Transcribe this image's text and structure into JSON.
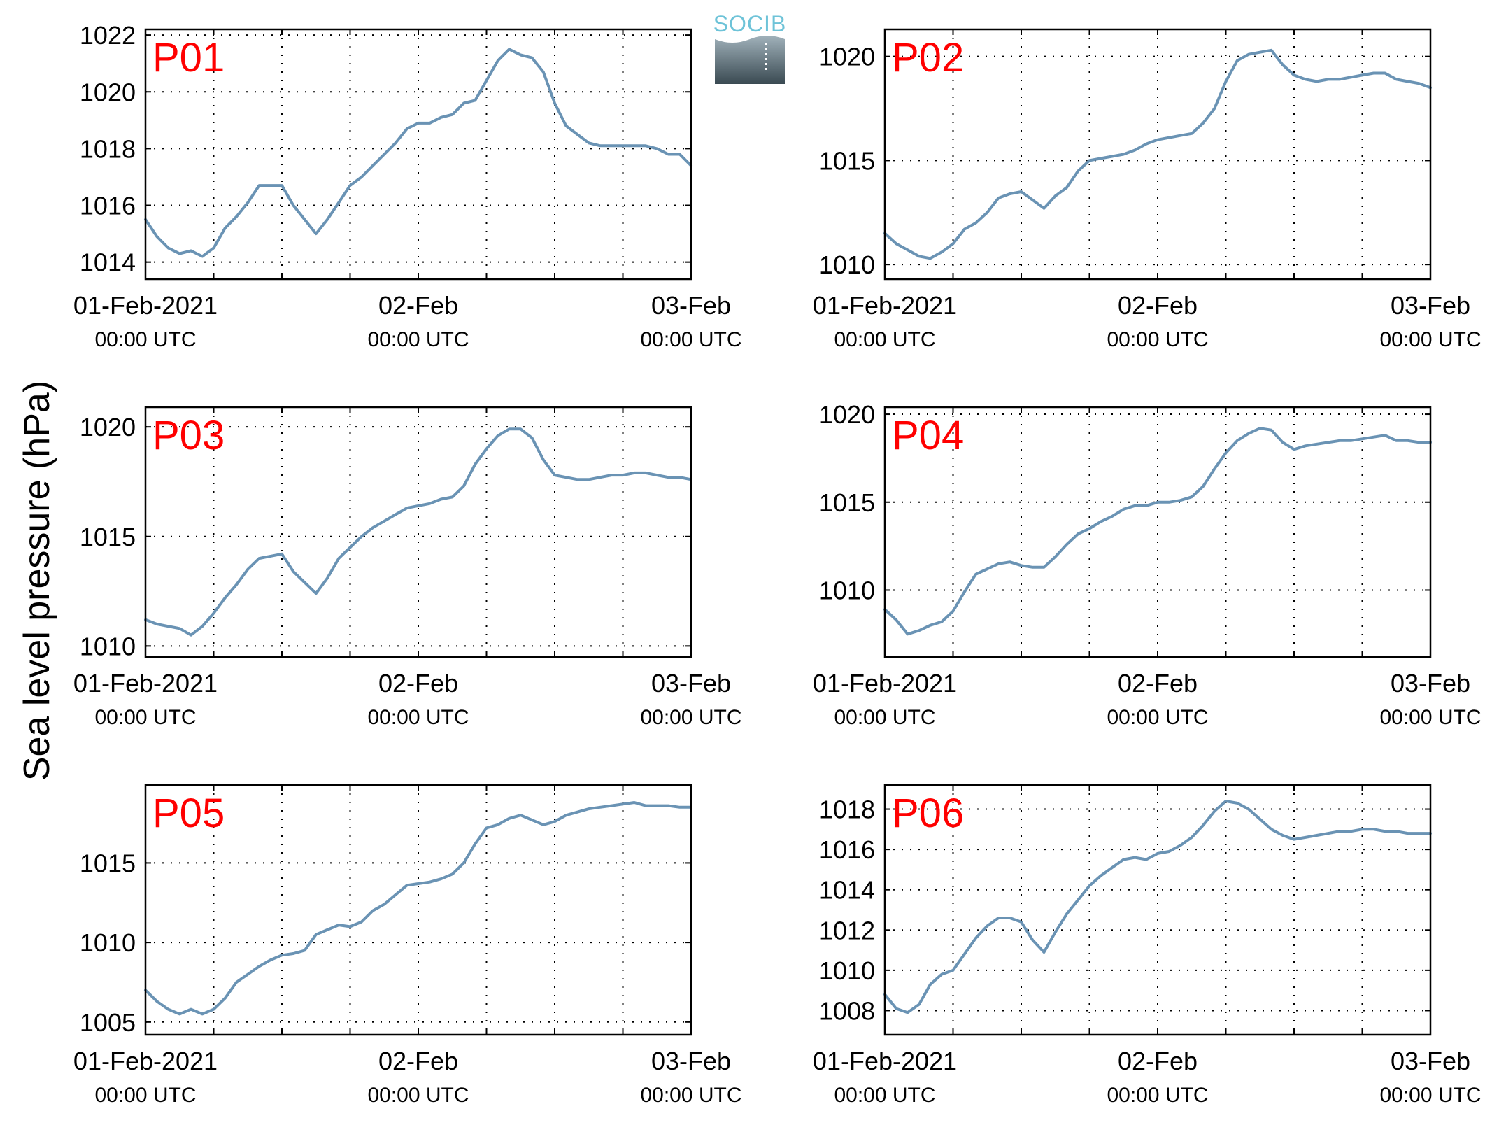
{
  "figure": {
    "ylabel": "Sea level pressure (hPa)",
    "logo_text": "SOCIB"
  },
  "colors": {
    "line": "#6a93b4",
    "panel_label": "#ff0000",
    "axis": "#000000",
    "grid": "#000000"
  },
  "x_axis": {
    "range": [
      "2021-02-01 00:00",
      "2021-02-03 00:00"
    ],
    "ticks": [
      {
        "value": "2021-02-01 00:00",
        "label": "01-Feb-2021",
        "sublabel": "00:00 UTC"
      },
      {
        "value": "2021-02-02 00:00",
        "label": "02-Feb",
        "sublabel": "00:00 UTC"
      },
      {
        "value": "2021-02-03 00:00",
        "label": "03-Feb",
        "sublabel": "00:00 UTC"
      }
    ],
    "grid_every_hours": 6
  },
  "chart_data": [
    {
      "type": "line",
      "label": "P01",
      "ylim": [
        1013.4,
        1022.2
      ],
      "yticks": [
        1014,
        1016,
        1018,
        1020,
        1022
      ],
      "grid": true,
      "x_hours": [
        0,
        1,
        2,
        3,
        4,
        5,
        6,
        7,
        8,
        9,
        10,
        11,
        12,
        13,
        14,
        15,
        16,
        17,
        18,
        19,
        20,
        21,
        22,
        23,
        24,
        25,
        26,
        27,
        28,
        29,
        30,
        31,
        32,
        33,
        34,
        35,
        36,
        37,
        38,
        39,
        40,
        41,
        42,
        43,
        44,
        45,
        46,
        47,
        48
      ],
      "values": [
        1015.5,
        1014.9,
        1014.5,
        1014.3,
        1014.4,
        1014.2,
        1014.5,
        1015.2,
        1015.6,
        1016.1,
        1016.7,
        1016.7,
        1016.7,
        1016.0,
        1015.5,
        1015.0,
        1015.5,
        1016.1,
        1016.7,
        1017.0,
        1017.4,
        1017.8,
        1018.2,
        1018.7,
        1018.9,
        1018.9,
        1019.1,
        1019.2,
        1019.6,
        1019.7,
        1020.4,
        1021.1,
        1021.5,
        1021.3,
        1021.2,
        1020.7,
        1019.6,
        1018.8,
        1018.5,
        1018.2,
        1018.1,
        1018.1,
        1018.1,
        1018.1,
        1018.1,
        1018.0,
        1017.8,
        1017.8,
        1017.4
      ]
    },
    {
      "type": "line",
      "label": "P02",
      "ylim": [
        1009.3,
        1021.3
      ],
      "yticks": [
        1010,
        1015,
        1020
      ],
      "grid": true,
      "x_hours": [
        0,
        1,
        2,
        3,
        4,
        5,
        6,
        7,
        8,
        9,
        10,
        11,
        12,
        13,
        14,
        15,
        16,
        17,
        18,
        19,
        20,
        21,
        22,
        23,
        24,
        25,
        26,
        27,
        28,
        29,
        30,
        31,
        32,
        33,
        34,
        35,
        36,
        37,
        38,
        39,
        40,
        41,
        42,
        43,
        44,
        45,
        46,
        47,
        48
      ],
      "values": [
        1011.5,
        1011.0,
        1010.7,
        1010.4,
        1010.3,
        1010.6,
        1011.0,
        1011.7,
        1012.0,
        1012.5,
        1013.2,
        1013.4,
        1013.5,
        1013.1,
        1012.7,
        1013.3,
        1013.7,
        1014.5,
        1015.0,
        1015.1,
        1015.2,
        1015.3,
        1015.5,
        1015.8,
        1016.0,
        1016.1,
        1016.2,
        1016.3,
        1016.8,
        1017.5,
        1018.8,
        1019.8,
        1020.1,
        1020.2,
        1020.3,
        1019.6,
        1019.1,
        1018.9,
        1018.8,
        1018.9,
        1018.9,
        1019.0,
        1019.1,
        1019.2,
        1019.2,
        1018.9,
        1018.8,
        1018.7,
        1018.5
      ]
    },
    {
      "type": "line",
      "label": "P03",
      "ylim": [
        1009.5,
        1020.9
      ],
      "yticks": [
        1010,
        1015,
        1020
      ],
      "grid": true,
      "x_hours": [
        0,
        1,
        2,
        3,
        4,
        5,
        6,
        7,
        8,
        9,
        10,
        11,
        12,
        13,
        14,
        15,
        16,
        17,
        18,
        19,
        20,
        21,
        22,
        23,
        24,
        25,
        26,
        27,
        28,
        29,
        30,
        31,
        32,
        33,
        34,
        35,
        36,
        37,
        38,
        39,
        40,
        41,
        42,
        43,
        44,
        45,
        46,
        47,
        48
      ],
      "values": [
        1011.2,
        1011.0,
        1010.9,
        1010.8,
        1010.5,
        1010.9,
        1011.5,
        1012.2,
        1012.8,
        1013.5,
        1014.0,
        1014.1,
        1014.2,
        1013.4,
        1012.9,
        1012.4,
        1013.1,
        1014.0,
        1014.5,
        1015.0,
        1015.4,
        1015.7,
        1016.0,
        1016.3,
        1016.4,
        1016.5,
        1016.7,
        1016.8,
        1017.3,
        1018.3,
        1019.0,
        1019.6,
        1019.9,
        1019.9,
        1019.5,
        1018.5,
        1017.8,
        1017.7,
        1017.6,
        1017.6,
        1017.7,
        1017.8,
        1017.8,
        1017.9,
        1017.9,
        1017.8,
        1017.7,
        1017.7,
        1017.6
      ]
    },
    {
      "type": "line",
      "label": "P04",
      "ylim": [
        1006.2,
        1020.4
      ],
      "yticks": [
        1010,
        1015,
        1020
      ],
      "grid": true,
      "x_hours": [
        0,
        1,
        2,
        3,
        4,
        5,
        6,
        7,
        8,
        9,
        10,
        11,
        12,
        13,
        14,
        15,
        16,
        17,
        18,
        19,
        20,
        21,
        22,
        23,
        24,
        25,
        26,
        27,
        28,
        29,
        30,
        31,
        32,
        33,
        34,
        35,
        36,
        37,
        38,
        39,
        40,
        41,
        42,
        43,
        44,
        45,
        46,
        47,
        48
      ],
      "values": [
        1008.9,
        1008.3,
        1007.5,
        1007.7,
        1008.0,
        1008.2,
        1008.8,
        1009.9,
        1010.9,
        1011.2,
        1011.5,
        1011.6,
        1011.4,
        1011.3,
        1011.3,
        1011.9,
        1012.6,
        1013.2,
        1013.5,
        1013.9,
        1014.2,
        1014.6,
        1014.8,
        1014.8,
        1015.0,
        1015.0,
        1015.1,
        1015.3,
        1015.9,
        1016.9,
        1017.8,
        1018.5,
        1018.9,
        1019.2,
        1019.1,
        1018.4,
        1018.0,
        1018.2,
        1018.3,
        1018.4,
        1018.5,
        1018.5,
        1018.6,
        1018.7,
        1018.8,
        1018.5,
        1018.5,
        1018.4,
        1018.4
      ]
    },
    {
      "type": "line",
      "label": "P05",
      "ylim": [
        1004.2,
        1019.9
      ],
      "yticks": [
        1005,
        1010,
        1015
      ],
      "grid": true,
      "x_hours": [
        0,
        1,
        2,
        3,
        4,
        5,
        6,
        7,
        8,
        9,
        10,
        11,
        12,
        13,
        14,
        15,
        16,
        17,
        18,
        19,
        20,
        21,
        22,
        23,
        24,
        25,
        26,
        27,
        28,
        29,
        30,
        31,
        32,
        33,
        34,
        35,
        36,
        37,
        38,
        39,
        40,
        41,
        42,
        43,
        44,
        45,
        46,
        47,
        48
      ],
      "values": [
        1007.0,
        1006.3,
        1005.8,
        1005.5,
        1005.8,
        1005.5,
        1005.8,
        1006.5,
        1007.5,
        1008.0,
        1008.5,
        1008.9,
        1009.2,
        1009.3,
        1009.5,
        1010.5,
        1010.8,
        1011.1,
        1011.0,
        1011.3,
        1012.0,
        1012.4,
        1013.0,
        1013.6,
        1013.7,
        1013.8,
        1014.0,
        1014.3,
        1015.0,
        1016.2,
        1017.2,
        1017.4,
        1017.8,
        1018.0,
        1017.7,
        1017.4,
        1017.6,
        1018.0,
        1018.2,
        1018.4,
        1018.5,
        1018.6,
        1018.7,
        1018.8,
        1018.6,
        1018.6,
        1018.6,
        1018.5,
        1018.5
      ]
    },
    {
      "type": "line",
      "label": "P06",
      "ylim": [
        1006.8,
        1019.2
      ],
      "yticks": [
        1008,
        1010,
        1012,
        1014,
        1016,
        1018
      ],
      "grid": true,
      "x_hours": [
        0,
        1,
        2,
        3,
        4,
        5,
        6,
        7,
        8,
        9,
        10,
        11,
        12,
        13,
        14,
        15,
        16,
        17,
        18,
        19,
        20,
        21,
        22,
        23,
        24,
        25,
        26,
        27,
        28,
        29,
        30,
        31,
        32,
        33,
        34,
        35,
        36,
        37,
        38,
        39,
        40,
        41,
        42,
        43,
        44,
        45,
        46,
        47,
        48
      ],
      "values": [
        1008.8,
        1008.1,
        1007.9,
        1008.3,
        1009.3,
        1009.8,
        1010.0,
        1010.8,
        1011.6,
        1012.2,
        1012.6,
        1012.6,
        1012.4,
        1011.5,
        1010.9,
        1011.9,
        1012.8,
        1013.5,
        1014.2,
        1014.7,
        1015.1,
        1015.5,
        1015.6,
        1015.5,
        1015.8,
        1015.9,
        1016.2,
        1016.6,
        1017.2,
        1017.9,
        1018.4,
        1018.3,
        1018.0,
        1017.5,
        1017.0,
        1016.7,
        1016.5,
        1016.6,
        1016.7,
        1016.8,
        1016.9,
        1016.9,
        1017.0,
        1017.0,
        1016.9,
        1016.9,
        1016.8,
        1016.8,
        1016.8
      ]
    }
  ]
}
